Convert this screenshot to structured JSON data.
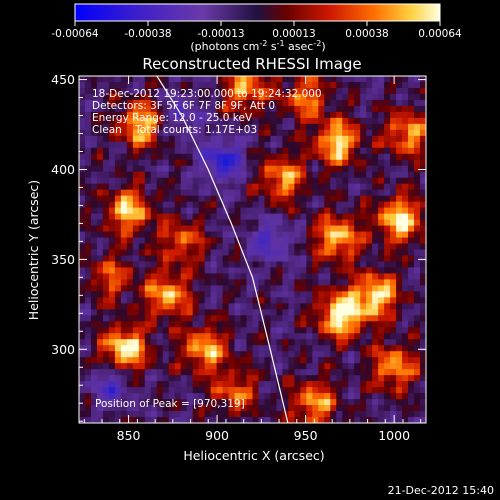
{
  "chart_data": {
    "type": "heatmap",
    "title": "Reconstructed RHESSI Image",
    "xlabel": "Heliocentric X (arcsec)",
    "ylabel": "Heliocentric Y (arcsec)",
    "xlim": [
      822,
      1018
    ],
    "ylim": [
      259,
      452
    ],
    "x_ticks": [
      850,
      900,
      950,
      1000
    ],
    "y_ticks": [
      300,
      350,
      400,
      450
    ],
    "colorbar": {
      "range": [
        -0.00064,
        0.00064
      ],
      "ticks": [
        "-0.00064",
        "-0.00038",
        "-0.00013",
        "0.00013",
        "0.00038",
        "0.00064"
      ],
      "unit_label": "(photons cm",
      "unit_sup1": "-2",
      "unit_mid": " s",
      "unit_sup2": "-1",
      "unit_mid2": " asec",
      "unit_sup3": "-2",
      "unit_end": ")"
    },
    "annotations": {
      "time_range": "18-Dec-2012 19:23:00.000 to 19:24:32.000",
      "detectors": "Detectors: 3F 5F 6F 7F 8F 9F, Att 0",
      "energy_range": "Energy Range: 12.0 - 25.0 keV",
      "method": "Clean    Total counts: 1.17E+03",
      "peak": "Position of Peak = [970,319]"
    },
    "peak_position": [
      970,
      319
    ],
    "limb_curve": [
      [
        866,
        452
      ],
      [
        880,
        430
      ],
      [
        895,
        400
      ],
      [
        908,
        370
      ],
      [
        920,
        340
      ],
      [
        930,
        300
      ],
      [
        940,
        259
      ]
    ],
    "hot_spots": [
      {
        "x": 970,
        "y": 319,
        "weight": 1.0
      },
      {
        "x": 968,
        "y": 415,
        "weight": 0.85
      },
      {
        "x": 1003,
        "y": 372,
        "weight": 0.9
      },
      {
        "x": 990,
        "y": 330,
        "weight": 0.85
      },
      {
        "x": 968,
        "y": 362,
        "weight": 0.8
      },
      {
        "x": 848,
        "y": 300,
        "weight": 0.95
      },
      {
        "x": 872,
        "y": 330,
        "weight": 0.75
      },
      {
        "x": 893,
        "y": 300,
        "weight": 0.75
      },
      {
        "x": 850,
        "y": 377,
        "weight": 0.8
      },
      {
        "x": 857,
        "y": 425,
        "weight": 0.8
      },
      {
        "x": 916,
        "y": 445,
        "weight": 0.7
      },
      {
        "x": 937,
        "y": 395,
        "weight": 0.7
      },
      {
        "x": 955,
        "y": 270,
        "weight": 0.7
      },
      {
        "x": 910,
        "y": 276,
        "weight": 0.55
      },
      {
        "x": 1000,
        "y": 290,
        "weight": 0.7
      },
      {
        "x": 1008,
        "y": 420,
        "weight": 0.7
      },
      {
        "x": 950,
        "y": 440,
        "weight": 0.6
      },
      {
        "x": 880,
        "y": 360,
        "weight": 0.55
      },
      {
        "x": 840,
        "y": 340,
        "weight": 0.5
      }
    ],
    "cold_spots": [
      {
        "x": 903,
        "y": 405,
        "weight": 0.9
      },
      {
        "x": 930,
        "y": 360,
        "weight": 0.6
      },
      {
        "x": 840,
        "y": 280,
        "weight": 0.6
      },
      {
        "x": 880,
        "y": 430,
        "weight": 0.5
      }
    ]
  },
  "footer_date": "21-Dec-2012 15:40"
}
